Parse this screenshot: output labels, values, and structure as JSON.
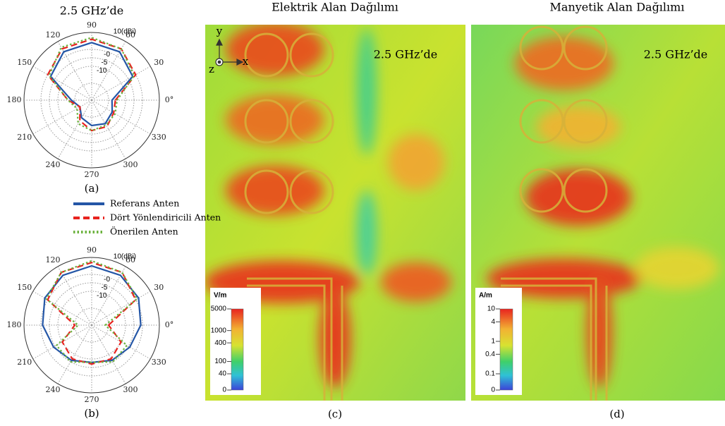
{
  "legend": [
    {
      "name": "Referans Anten",
      "color": "#2456a6",
      "dash": "solid"
    },
    {
      "name": "Dört Yönlendiricili Anten",
      "color": "#e8231f",
      "dash": "dashed"
    },
    {
      "name": "Önerilen Anten",
      "color": "#6db33f",
      "dash": "dotted"
    }
  ],
  "polar_panels": [
    {
      "type": "polar",
      "title": "2.5 GHz’de",
      "caption": "(a)",
      "rlim": [
        -30,
        10
      ],
      "radial_ticks": [
        {
          "value": 10,
          "label": "10(dBi)"
        },
        {
          "value": 0,
          "label": "-0"
        },
        -5,
        -10
      ],
      "angle_ticks": [
        {
          "value": 0,
          "label": "0°"
        },
        30,
        60,
        90,
        120,
        150,
        180,
        210,
        240,
        270,
        300,
        330
      ],
      "angles": [
        0,
        30,
        60,
        90,
        120,
        150,
        180,
        210,
        240,
        270,
        300,
        330
      ],
      "series": [
        {
          "values": [
            -18,
            -2,
            3,
            4,
            3,
            -2,
            -18,
            -22,
            -18,
            -15,
            -14,
            -16
          ]
        },
        {
          "values": [
            -16,
            0,
            5,
            6,
            5,
            0,
            -16,
            -22,
            -16,
            -12,
            -12,
            -15
          ]
        },
        {
          "values": [
            -15,
            -1,
            5,
            7,
            6,
            -1,
            -16,
            -20,
            -14,
            -12,
            -13,
            -14
          ]
        }
      ]
    },
    {
      "type": "polar",
      "caption": "(b)",
      "rlim": [
        -30,
        10
      ],
      "radial_ticks": [
        {
          "value": 10,
          "label": "10(dBi)"
        },
        {
          "value": 0,
          "label": "-0"
        },
        -5,
        -10
      ],
      "angle_ticks": [
        {
          "value": 0,
          "label": "0°"
        },
        30,
        60,
        90,
        120,
        150,
        180,
        210,
        240,
        270,
        300,
        330
      ],
      "angles": [
        0,
        30,
        60,
        90,
        120,
        150,
        180,
        210,
        240,
        270,
        300,
        330
      ],
      "series": [
        {
          "values": [
            -1,
            2,
            4,
            5,
            4,
            2,
            -1,
            -4,
            -6,
            -8,
            -6,
            -4
          ]
        },
        {
          "values": [
            -20,
            0,
            6,
            7,
            6,
            0,
            -20,
            -10,
            -7,
            -7,
            -7,
            -10
          ]
        },
        {
          "values": [
            -22,
            1,
            6,
            8,
            6,
            1,
            -22,
            -6,
            -5,
            -8,
            -5,
            -6
          ]
        }
      ]
    }
  ],
  "field_panels": [
    {
      "title": "Elektrik Alan Dağılımı",
      "annotation": "2.5 GHz’de",
      "caption": "(c)",
      "axes": [
        "y",
        "x",
        "z"
      ],
      "colorbar": {
        "unit": "V/m",
        "log": true,
        "lim": [
          0,
          5000
        ],
        "ticks": [
          5000,
          1000,
          400,
          100,
          40,
          0
        ]
      }
    },
    {
      "title": "Manyetik Alan Dağılımı",
      "annotation": "2.5 GHz’de",
      "caption": "(d)",
      "colorbar": {
        "unit": "A/m",
        "log": true,
        "lim": [
          0,
          10
        ],
        "ticks": [
          10,
          4,
          1,
          0.4,
          0.1,
          0
        ]
      }
    }
  ]
}
